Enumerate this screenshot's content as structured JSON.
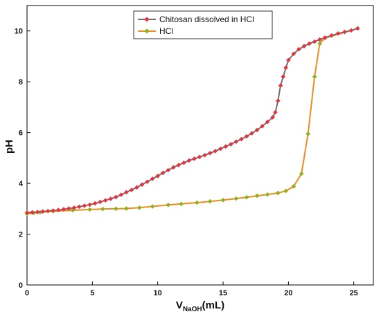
{
  "chart_data": {
    "type": "line",
    "xlabel": {
      "main": "V",
      "sub": "NaOH",
      "rest": "(mL)"
    },
    "ylabel": "pH",
    "xlim": [
      0,
      26.5
    ],
    "ylim": [
      0,
      11
    ],
    "xticks": [
      "0",
      "5",
      "10",
      "15",
      "20",
      "25"
    ],
    "yticks": [
      "0",
      "2",
      "4",
      "6",
      "8",
      "10"
    ],
    "grid": false,
    "legend_position": "top-center",
    "series": [
      {
        "name": "Chitosan dissolved in HCl",
        "color": "#e5343f",
        "line_color": "#6f6f6f",
        "marker": "diamond",
        "x": [
          0,
          0.4,
          0.8,
          1.2,
          1.6,
          2.0,
          2.4,
          2.8,
          3.2,
          3.6,
          4.0,
          4.4,
          4.8,
          5.2,
          5.6,
          6.0,
          6.4,
          6.8,
          7.2,
          7.6,
          8.0,
          8.4,
          8.8,
          9.2,
          9.6,
          10.0,
          10.4,
          10.8,
          11.2,
          11.6,
          12.0,
          12.4,
          12.8,
          13.2,
          13.6,
          14.0,
          14.4,
          14.8,
          15.2,
          15.6,
          16.0,
          16.4,
          16.8,
          17.2,
          17.6,
          18.0,
          18.4,
          18.8,
          19.0,
          19.2,
          19.4,
          19.6,
          19.8,
          20.0,
          20.4,
          20.8,
          21.2,
          21.6,
          22.0,
          22.4,
          22.8,
          23.3,
          23.8,
          24.3,
          24.8,
          25.3
        ],
        "y": [
          2.85,
          2.86,
          2.87,
          2.89,
          2.91,
          2.93,
          2.95,
          2.98,
          3.01,
          3.04,
          3.08,
          3.12,
          3.16,
          3.21,
          3.27,
          3.33,
          3.39,
          3.46,
          3.55,
          3.65,
          3.74,
          3.84,
          3.95,
          4.06,
          4.18,
          4.29,
          4.41,
          4.52,
          4.63,
          4.72,
          4.81,
          4.9,
          4.97,
          5.04,
          5.11,
          5.19,
          5.27,
          5.36,
          5.45,
          5.54,
          5.64,
          5.74,
          5.85,
          5.97,
          6.1,
          6.25,
          6.42,
          6.6,
          6.8,
          7.25,
          7.85,
          8.2,
          8.55,
          8.85,
          9.1,
          9.28,
          9.4,
          9.5,
          9.58,
          9.66,
          9.74,
          9.82,
          9.9,
          9.96,
          10.02,
          10.1
        ]
      },
      {
        "name": "HCl",
        "color": "#8ab319",
        "line_color": "#f0891e",
        "marker": "diamond",
        "x": [
          0,
          0.5,
          1.0,
          2.0,
          3.5,
          4.8,
          5.8,
          6.8,
          7.6,
          8.6,
          9.6,
          10.8,
          11.8,
          13.0,
          14.0,
          15.0,
          16.0,
          16.8,
          17.6,
          18.4,
          19.2,
          19.8,
          20.4,
          21.0,
          21.5,
          22.0,
          22.4,
          22.8,
          25.3
        ],
        "y": [
          2.8,
          2.83,
          2.86,
          2.9,
          2.94,
          2.97,
          2.99,
          3.0,
          3.01,
          3.04,
          3.09,
          3.15,
          3.19,
          3.24,
          3.29,
          3.34,
          3.4,
          3.45,
          3.51,
          3.56,
          3.62,
          3.7,
          3.88,
          4.38,
          5.95,
          8.2,
          9.5,
          9.72,
          10.1
        ]
      }
    ]
  }
}
